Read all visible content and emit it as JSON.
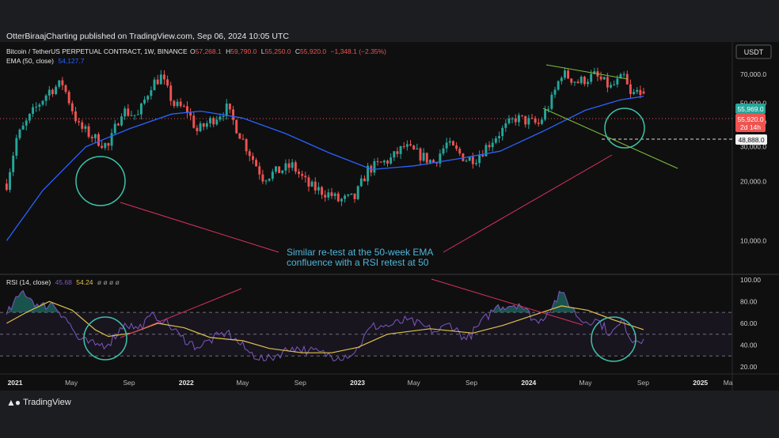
{
  "header": {
    "published": "OtterBiraajCharting published on TradingView.com, Sep 06, 2024 10:05 UTC"
  },
  "price_pane": {
    "symbol": "Bitcoin / TetherUS PERPETUAL CONTRACT, 1W, BINANCE",
    "ohlc": {
      "o_label": "O",
      "o": "57,268.1",
      "h_label": "H",
      "h": "59,790.0",
      "l_label": "L",
      "l": "55,250.0",
      "c_label": "C",
      "c": "55,920.0",
      "change": "−1,348.1 (−2.35%)"
    },
    "ema_label": "EMA (50, close)",
    "ema_value": "54,127.7",
    "currency": "USDT",
    "badges": {
      "green": "55,969.0",
      "red": "55,920.0",
      "red_sub": "2d 14h",
      "white": "48,888.0"
    },
    "annotation_line1": "Similar re-test at the 50-week EMA",
    "annotation_line2": "confluence with a RSI retest at 50"
  },
  "rsi_pane": {
    "label": "RSI (14, close)",
    "rsi_value": "45.68",
    "ma_value": "54.24",
    "extra": "ø ø ø ø"
  },
  "footer": {
    "brand": "TradingView"
  },
  "colors": {
    "background": "#0f0f10",
    "up": "#26a69a",
    "down": "#ef5350",
    "ema": "#2962ff",
    "rsi": "#7e57c2",
    "rsi_ma": "#e0c14a",
    "annotation": "#4fb6d8",
    "trend_red": "#d8325a",
    "trend_green": "#7cc13a",
    "circle": "#3fc1a7"
  },
  "chart_data": [
    {
      "type": "candlestick",
      "title": "Bitcoin / TetherUS PERPETUAL CONTRACT, 1W, BINANCE",
      "x_ticks": [
        "2021",
        "May",
        "Sep",
        "2022",
        "May",
        "Sep",
        "2023",
        "May",
        "Sep",
        "2024",
        "May",
        "Sep",
        "2025",
        "Ma"
      ],
      "y_ticks": [
        "10,000.0",
        "20,000.0",
        "30,000.0",
        "40,000.0",
        "50,000.0",
        "70,000.0"
      ],
      "y_log": true,
      "ylim": [
        7000,
        95000
      ],
      "xlim": [
        "2020-12-10",
        "2025-03-10"
      ],
      "price_path": [
        [
          "2020-12-14",
          19500
        ],
        [
          "2021-01-04",
          33000
        ],
        [
          "2021-02-08",
          45000
        ],
        [
          "2021-02-22",
          50000
        ],
        [
          "2021-03-15",
          58000
        ],
        [
          "2021-04-12",
          63000
        ],
        [
          "2021-05-17",
          38000
        ],
        [
          "2021-06-21",
          33000
        ],
        [
          "2021-07-19",
          30000
        ],
        [
          "2021-08-16",
          46000
        ],
        [
          "2021-09-20",
          43000
        ],
        [
          "2021-10-18",
          62000
        ],
        [
          "2021-11-08",
          68000
        ],
        [
          "2021-12-06",
          49000
        ],
        [
          "2022-01-03",
          46000
        ],
        [
          "2022-01-24",
          36000
        ],
        [
          "2022-03-28",
          47000
        ],
        [
          "2022-05-09",
          30000
        ],
        [
          "2022-06-13",
          21000
        ],
        [
          "2022-07-25",
          23000
        ],
        [
          "2022-08-15",
          24000
        ],
        [
          "2022-09-19",
          19000
        ],
        [
          "2022-11-07",
          17000
        ],
        [
          "2022-11-21",
          16000
        ],
        [
          "2022-12-26",
          16500
        ],
        [
          "2023-01-23",
          23000
        ],
        [
          "2023-03-13",
          26000
        ],
        [
          "2023-04-10",
          30000
        ],
        [
          "2023-06-12",
          25000
        ],
        [
          "2023-07-10",
          31000
        ],
        [
          "2023-08-21",
          26000
        ],
        [
          "2023-09-11",
          26500
        ],
        [
          "2023-10-23",
          34000
        ],
        [
          "2023-12-04",
          42000
        ],
        [
          "2024-01-22",
          39000
        ],
        [
          "2024-02-19",
          52000
        ],
        [
          "2024-03-11",
          71000
        ],
        [
          "2024-04-15",
          64000
        ],
        [
          "2024-05-20",
          69000
        ],
        [
          "2024-06-24",
          60000
        ],
        [
          "2024-07-22",
          68000
        ],
        [
          "2024-08-05",
          54000
        ],
        [
          "2024-08-26",
          59000
        ],
        [
          "2024-09-02",
          55920
        ]
      ],
      "ema_50": [
        [
          "2020-12-14",
          10000
        ],
        [
          "2021-03-01",
          18000
        ],
        [
          "2021-06-01",
          30000
        ],
        [
          "2021-09-01",
          37000
        ],
        [
          "2021-12-01",
          44000
        ],
        [
          "2022-02-01",
          45500
        ],
        [
          "2022-05-01",
          42000
        ],
        [
          "2022-08-01",
          35000
        ],
        [
          "2022-11-01",
          28000
        ],
        [
          "2023-02-01",
          23000
        ],
        [
          "2023-05-01",
          24000
        ],
        [
          "2023-08-01",
          26000
        ],
        [
          "2023-11-01",
          28500
        ],
        [
          "2024-02-01",
          36000
        ],
        [
          "2024-05-01",
          46000
        ],
        [
          "2024-07-15",
          52000
        ],
        [
          "2024-09-02",
          54127.7
        ]
      ]
    },
    {
      "type": "line",
      "title": "RSI (14, close)",
      "y_ticks": [
        "20.00",
        "40.00",
        "60.00",
        "80.00",
        "100.00"
      ],
      "ylim": [
        15,
        102
      ],
      "bands": [
        30,
        50,
        70
      ],
      "series": [
        {
          "name": "RSI",
          "values": [
            [
              "2020-12-14",
              68
            ],
            [
              "2021-01-18",
              90
            ],
            [
              "2021-02-22",
              75
            ],
            [
              "2021-03-22",
              78
            ],
            [
              "2021-04-19",
              65
            ],
            [
              "2021-05-17",
              45
            ],
            [
              "2021-06-21",
              40
            ],
            [
              "2021-07-19",
              41
            ],
            [
              "2021-08-23",
              60
            ],
            [
              "2021-09-20",
              55
            ],
            [
              "2021-10-25",
              68
            ],
            [
              "2021-11-15",
              62
            ],
            [
              "2021-12-20",
              48
            ],
            [
              "2022-01-24",
              38
            ],
            [
              "2022-03-28",
              52
            ],
            [
              "2022-05-16",
              33
            ],
            [
              "2022-06-20",
              26
            ],
            [
              "2022-08-15",
              38
            ],
            [
              "2022-09-19",
              35
            ],
            [
              "2022-11-21",
              29
            ],
            [
              "2022-12-26",
              33
            ],
            [
              "2023-01-30",
              57
            ],
            [
              "2023-03-13",
              58
            ],
            [
              "2023-04-17",
              63
            ],
            [
              "2023-06-19",
              52
            ],
            [
              "2023-07-17",
              60
            ],
            [
              "2023-08-21",
              45
            ],
            [
              "2023-10-23",
              75
            ],
            [
              "2023-12-11",
              78
            ],
            [
              "2024-01-22",
              60
            ],
            [
              "2024-03-11",
              88
            ],
            [
              "2024-04-22",
              62
            ],
            [
              "2024-05-27",
              63
            ],
            [
              "2024-06-24",
              50
            ],
            [
              "2024-07-22",
              62
            ],
            [
              "2024-08-05",
              45
            ],
            [
              "2024-09-02",
              45.68
            ]
          ]
        },
        {
          "name": "RSI MA",
          "values": [
            [
              "2020-12-14",
              60
            ],
            [
              "2021-01-25",
              70
            ],
            [
              "2021-03-15",
              80
            ],
            [
              "2021-05-03",
              72
            ],
            [
              "2021-06-21",
              54
            ],
            [
              "2021-07-19",
              48
            ],
            [
              "2021-09-06",
              51
            ],
            [
              "2021-11-01",
              60
            ],
            [
              "2021-12-27",
              56
            ],
            [
              "2022-02-21",
              47
            ],
            [
              "2022-05-02",
              44
            ],
            [
              "2022-06-27",
              37
            ],
            [
              "2022-09-05",
              33
            ],
            [
              "2022-11-07",
              33
            ],
            [
              "2023-01-02",
              38
            ],
            [
              "2023-03-06",
              50
            ],
            [
              "2023-06-05",
              55
            ],
            [
              "2023-09-04",
              51
            ],
            [
              "2023-11-06",
              58
            ],
            [
              "2024-01-15",
              68
            ],
            [
              "2024-03-11",
              76
            ],
            [
              "2024-05-06",
              72
            ],
            [
              "2024-07-01",
              63
            ],
            [
              "2024-09-02",
              54.24
            ]
          ]
        }
      ]
    }
  ]
}
